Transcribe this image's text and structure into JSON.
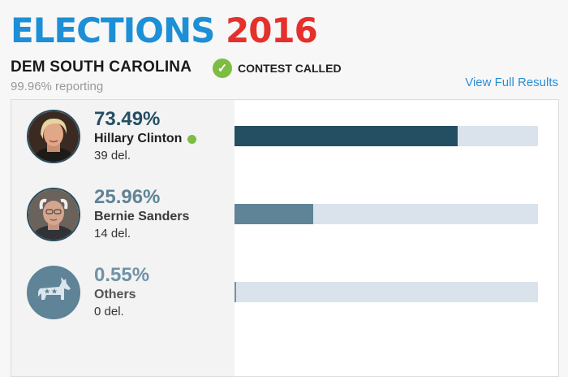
{
  "header": {
    "logo_word1": "ELECTIONS",
    "logo_word2": "2016",
    "contest_title": "DEM SOUTH CAROLINA",
    "contest_status": "CONTEST CALLED",
    "reporting": "99.96% reporting",
    "full_results_link": "View Full Results"
  },
  "colors": {
    "logo_blue": "#1c8fd6",
    "logo_red": "#e4312c",
    "called_green": "#7cbd42",
    "bar_dark": "#244f63",
    "bar_mid": "#5f8397",
    "bar_light": "#6f93a6",
    "bar_track": "#dae3eb"
  },
  "candidates": [
    {
      "percent": "73.49%",
      "name": "Hillary Clinton",
      "delegates": "39 del.",
      "winner": true,
      "bar_fraction": 0.7349,
      "icon": "clinton-photo-icon"
    },
    {
      "percent": "25.96%",
      "name": "Bernie Sanders",
      "delegates": "14 del.",
      "winner": false,
      "bar_fraction": 0.2596,
      "icon": "sanders-photo-icon"
    },
    {
      "percent": "0.55%",
      "name": "Others",
      "delegates": "0 del.",
      "winner": false,
      "bar_fraction": 0.0055,
      "icon": "donkey-icon"
    }
  ]
}
